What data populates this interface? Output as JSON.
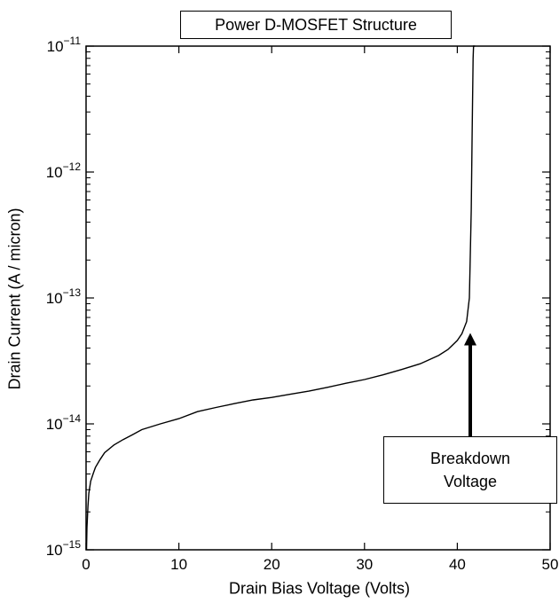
{
  "chart_data": {
    "type": "line",
    "title": "Power D-MOSFET Structure",
    "xlabel": "Drain Bias Voltage (Volts)",
    "ylabel": "Drain Current (A / micron)",
    "xlim": [
      0,
      50
    ],
    "ylim": [
      1e-15,
      1e-11
    ],
    "yscale": "log",
    "grid": false,
    "x_ticks": [
      "0",
      "10",
      "20",
      "30",
      "40",
      "50"
    ],
    "x_tick_values": [
      0,
      10,
      20,
      30,
      40,
      50
    ],
    "y_tick_values": [
      1e-15,
      1e-14,
      1e-13,
      1e-12,
      1e-11
    ],
    "y_ticks": [
      {
        "base": "10",
        "exp": "−15"
      },
      {
        "base": "10",
        "exp": "−14"
      },
      {
        "base": "10",
        "exp": "−13"
      },
      {
        "base": "10",
        "exp": "−12"
      },
      {
        "base": "10",
        "exp": "−11"
      }
    ],
    "series": [
      {
        "x": [
          0.05,
          0.1,
          0.2,
          0.3,
          0.5,
          0.8,
          1.0,
          1.5,
          2.0,
          3.0,
          4.0,
          5.0,
          6.0,
          8.0,
          10.0,
          12.0,
          14.0,
          16.0,
          18.0,
          20.0,
          22.0,
          24.0,
          26.0,
          28.0,
          30.0,
          32.0,
          34.0,
          36.0,
          38.0,
          39.0,
          40.0,
          40.5,
          41.0,
          41.3,
          41.5,
          41.6,
          41.7,
          41.75,
          41.8,
          41.85,
          41.9
        ],
        "y": [
          1e-15,
          1.5e-15,
          2.2e-15,
          2.8e-15,
          3.5e-15,
          4.1e-15,
          4.5e-15,
          5.2e-15,
          5.9e-15,
          6.8e-15,
          7.5e-15,
          8.2e-15,
          9e-15,
          1e-14,
          1.1e-14,
          1.25e-14,
          1.35e-14,
          1.45e-14,
          1.55e-14,
          1.62e-14,
          1.72e-14,
          1.82e-14,
          1.95e-14,
          2.1e-14,
          2.25e-14,
          2.45e-14,
          2.7e-14,
          3e-14,
          3.5e-14,
          3.9e-14,
          4.6e-14,
          5.2e-14,
          6.5e-14,
          1e-13,
          5e-13,
          2e-12,
          8e-12,
          1e-11,
          1e-11,
          1e-11,
          1e-11
        ]
      }
    ],
    "annotation": {
      "lines": [
        "Breakdown",
        "Voltage"
      ],
      "arrow_target_x": 41.5,
      "arrow_target_y": 6e-14
    }
  }
}
